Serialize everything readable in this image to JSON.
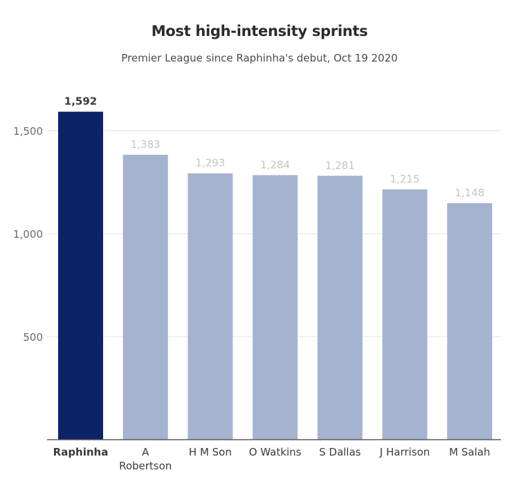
{
  "chart_data": {
    "type": "bar",
    "title": "Most high-intensity sprints",
    "subtitle": "Premier League since Raphinha's debut, Oct 19 2020",
    "xlabel": "",
    "ylabel": "",
    "categories": [
      "Raphinha",
      "A Robertson",
      "H M Son",
      "O Watkins",
      "S Dallas",
      "J Harrison",
      "M Salah"
    ],
    "category_lines": [
      [
        "Raphinha"
      ],
      [
        "A",
        "Robertson"
      ],
      [
        "H M Son"
      ],
      [
        "O Watkins"
      ],
      [
        "S Dallas"
      ],
      [
        "J Harrison"
      ],
      [
        "M Salah"
      ]
    ],
    "values": [
      1592,
      1383,
      1293,
      1284,
      1281,
      1215,
      1148
    ],
    "value_labels": [
      "1,592",
      "1,383",
      "1,293",
      "1,284",
      "1,281",
      "1,215",
      "1,148"
    ],
    "highlight_index": 0,
    "yticks": [
      500,
      1000,
      1500
    ],
    "ytick_labels": [
      "500",
      "1,000",
      "1,500"
    ],
    "ylim": [
      0,
      1650
    ],
    "grid": true,
    "legend": "none",
    "colors": {
      "highlight": "#0c2366",
      "bar": "#a4b3cf",
      "highlight_label": "#3a3a3a",
      "label": "#c4c4c4",
      "axis_text": "#6a6a6a",
      "category_text": "#3a3a3a",
      "grid": "#e2e2e2",
      "baseline": "#5a5a5a"
    }
  }
}
